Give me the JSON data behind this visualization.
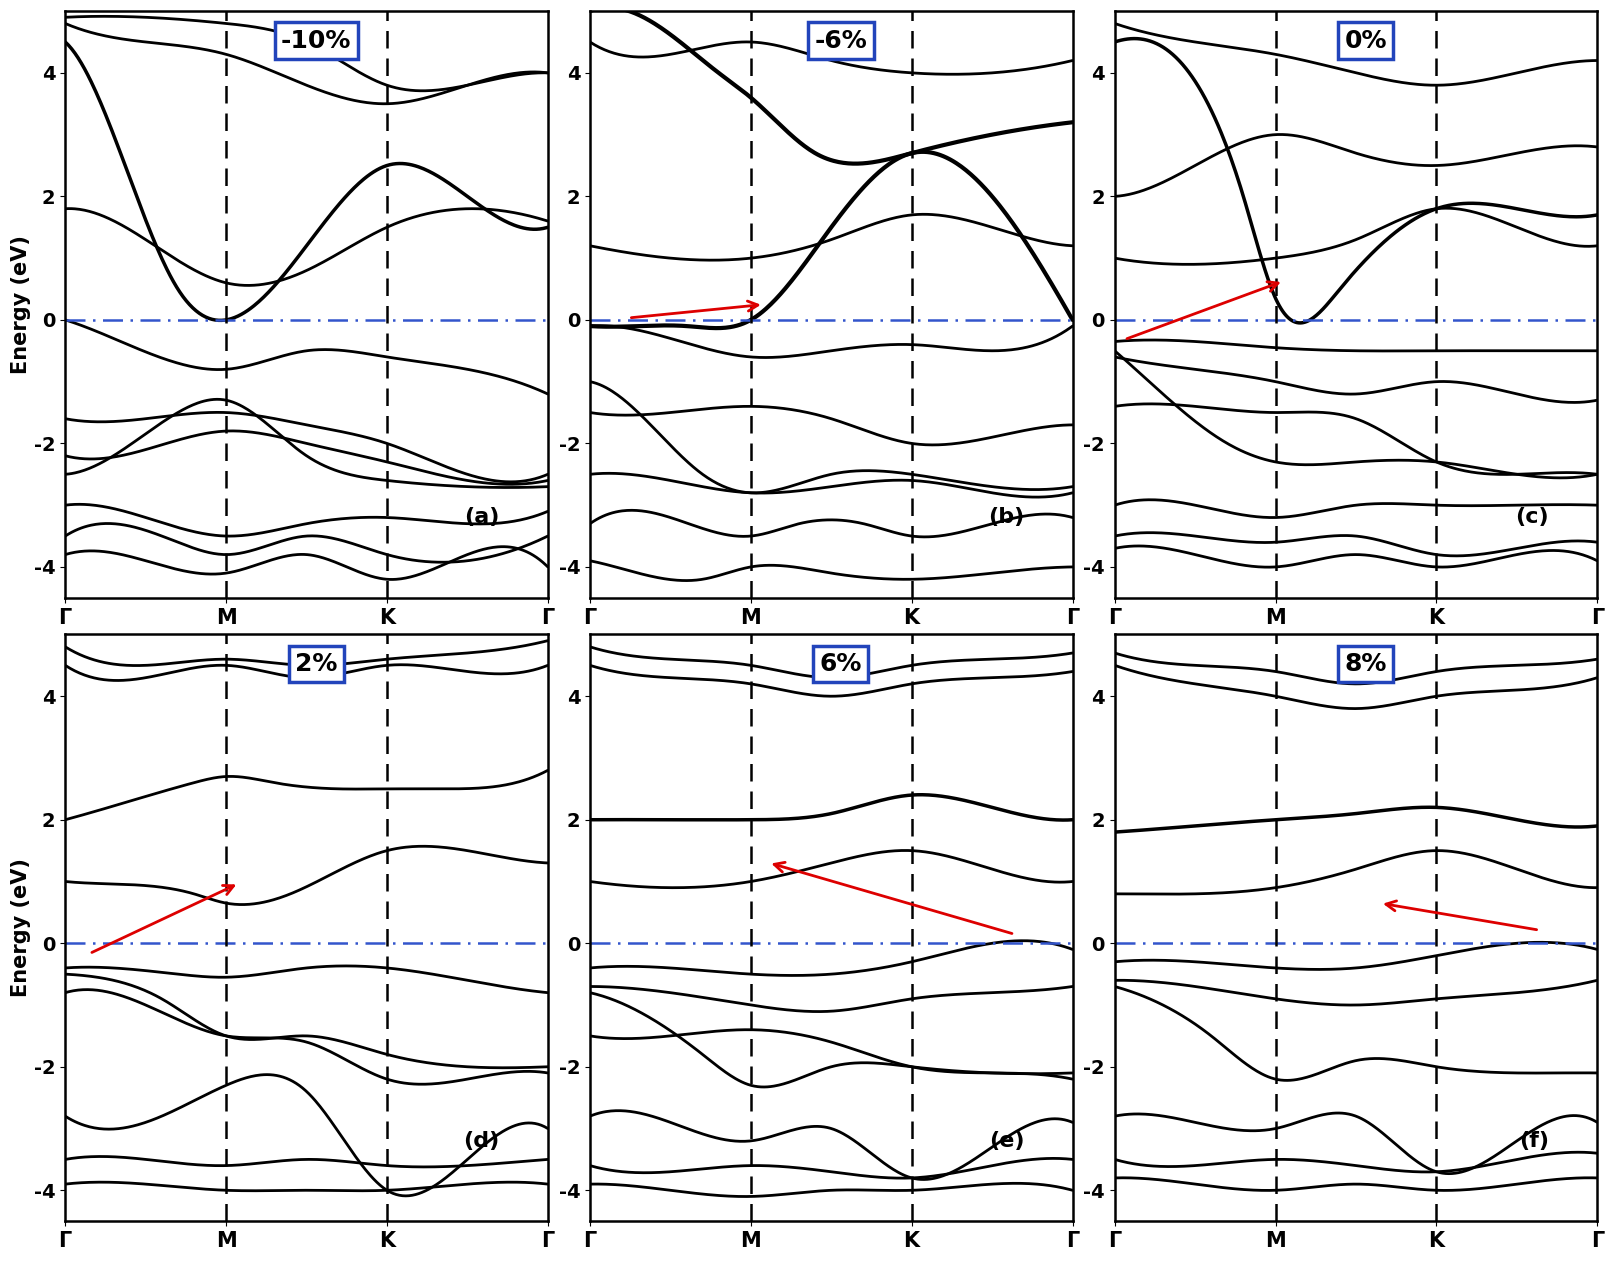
{
  "panels": [
    {
      "label": "-10%",
      "panel_id": "a"
    },
    {
      "label": "-6%",
      "panel_id": "b"
    },
    {
      "label": "0%",
      "panel_id": "c"
    },
    {
      "label": "2%",
      "panel_id": "d"
    },
    {
      "label": "6%",
      "panel_id": "e"
    },
    {
      "label": "8%",
      "panel_id": "f"
    }
  ],
  "ylim": [
    -4.5,
    5.0
  ],
  "yticks": [
    -4,
    -2,
    0,
    2,
    4
  ],
  "xticks": [
    0,
    1,
    2,
    3
  ],
  "xticklabels": [
    "Γ",
    "M",
    "K",
    "Γ"
  ],
  "ylabel": "Energy (eV)",
  "fermi_color": "#3355CC",
  "band_color": "#000000",
  "arrow_color": "#DD0000",
  "label_box_edgecolor": "#2244BB"
}
